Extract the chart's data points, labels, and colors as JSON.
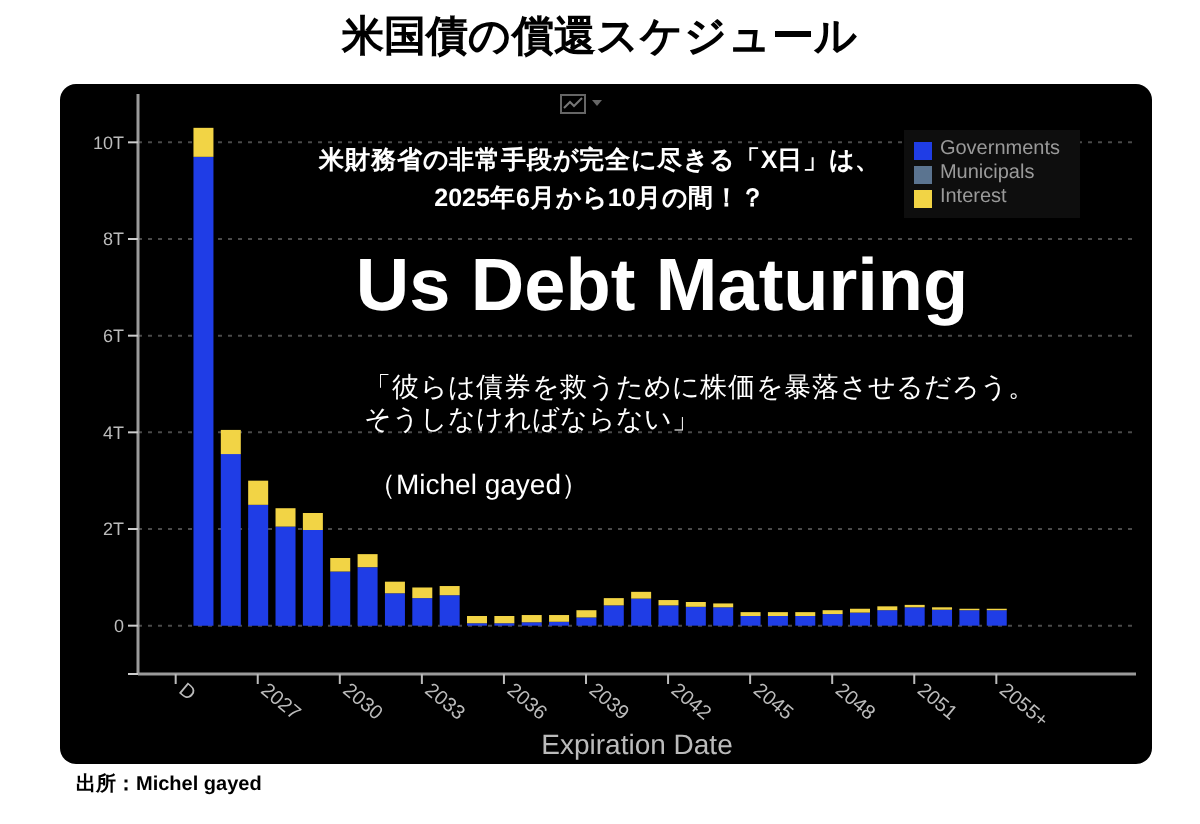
{
  "chart_data": {
    "type": "bar",
    "title": "米国債の償還スケジュール",
    "subtitle": "Us Debt Maturing",
    "xlabel": "Expiration Date",
    "annotations": [
      "米財務省の非常手段が完全に尽きる「X日」は、2025年6月から10月の間！？",
      "「彼らは債券を救うために株価を暴落させるだろう。そうしなければならない」",
      "（Michel gayed）",
      "出所：Michel gayed"
    ],
    "categories": [
      "D",
      null,
      null,
      "2027",
      null,
      null,
      "2030",
      null,
      null,
      "2033",
      null,
      null,
      "2036",
      null,
      null,
      "2039",
      null,
      null,
      "2042",
      null,
      null,
      "2045",
      null,
      null,
      "2048",
      null,
      null,
      "2051",
      null,
      null,
      "2055+"
    ],
    "series": [
      {
        "name": "Governments",
        "color": "#1f3de6",
        "values": [
          null,
          9.7,
          3.55,
          2.5,
          2.05,
          1.98,
          1.12,
          1.21,
          0.67,
          0.57,
          0.63,
          0.05,
          0.05,
          0.07,
          0.08,
          0.17,
          0.42,
          0.56,
          0.42,
          0.39,
          0.38,
          0.2,
          0.2,
          0.2,
          0.24,
          0.27,
          0.32,
          0.38,
          0.33,
          0.32,
          0.32
        ]
      },
      {
        "name": "Municipals",
        "color": "#5b7490",
        "values": [
          null,
          0,
          0,
          0,
          0,
          0,
          0,
          0,
          0,
          0,
          0,
          0,
          0,
          0,
          0,
          0,
          0,
          0,
          0,
          0,
          0,
          0,
          0,
          0,
          0,
          0,
          0,
          0,
          0,
          0,
          0
        ]
      },
      {
        "name": "Interest",
        "color": "#f2d445",
        "values": [
          null,
          0.6,
          0.5,
          0.5,
          0.38,
          0.35,
          0.28,
          0.27,
          0.24,
          0.22,
          0.19,
          0.15,
          0.15,
          0.15,
          0.14,
          0.15,
          0.15,
          0.14,
          0.11,
          0.1,
          0.08,
          0.08,
          0.08,
          0.08,
          0.08,
          0.08,
          0.08,
          0.05,
          0.05,
          0.03,
          0.03
        ]
      }
    ],
    "stacked": true,
    "ylim": [
      -1,
      11
    ],
    "yticks": [
      {
        "value": -1,
        "label": null
      },
      0,
      {
        "value": 2,
        "label": "2T"
      },
      {
        "value": 4,
        "label": "4T"
      },
      {
        "value": 6,
        "label": "6T"
      },
      {
        "value": 8,
        "label": "8T"
      },
      {
        "value": 10,
        "label": "10T"
      }
    ],
    "grid": "y",
    "legend": "top right"
  }
}
